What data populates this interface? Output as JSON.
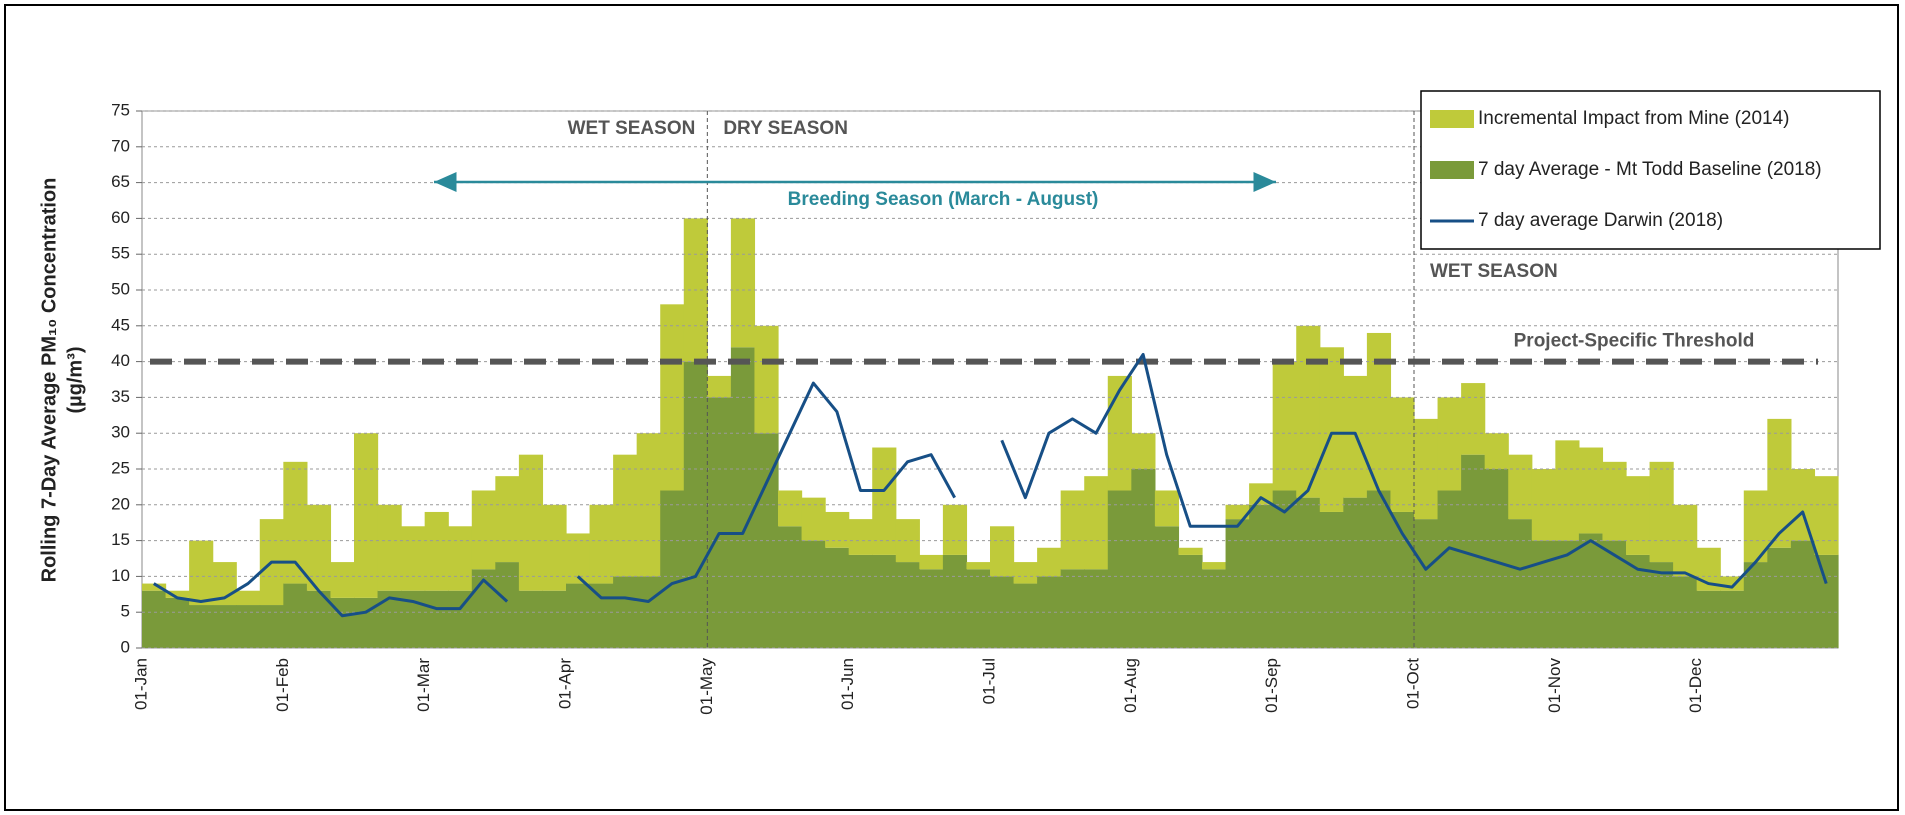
{
  "chart_data": {
    "type": "stacked_bar_line",
    "y_label": [
      "Rolling 7-Day Average PM₁₀ Concentration",
      "(µg/m³)"
    ],
    "categories": [
      "01-Jan",
      null,
      null,
      null,
      null,
      null,
      "01-Feb",
      null,
      null,
      null,
      null,
      null,
      "01-Mar",
      null,
      null,
      null,
      null,
      null,
      "01-Apr",
      null,
      null,
      null,
      null,
      null,
      "01-May",
      null,
      null,
      null,
      null,
      null,
      "01-Jun",
      null,
      null,
      null,
      null,
      null,
      "01-Jul",
      null,
      null,
      null,
      null,
      null,
      "01-Aug",
      null,
      null,
      null,
      null,
      null,
      "01-Sep",
      null,
      null,
      null,
      null,
      null,
      "01-Oct",
      null,
      null,
      null,
      null,
      null,
      "01-Nov",
      null,
      null,
      null,
      null,
      null,
      "01-Dec",
      null,
      null,
      null,
      null,
      null
    ],
    "series": [
      {
        "name": "Incremental Impact from Mine (2014)",
        "color": "#bfca3a",
        "values": [
          1,
          1,
          9,
          6,
          2,
          12,
          17,
          12,
          5,
          23,
          12,
          9,
          11,
          9,
          11,
          12,
          19,
          12,
          7,
          11,
          17,
          20,
          26,
          20,
          3,
          18,
          15,
          5,
          6,
          5,
          5,
          15,
          6,
          2,
          7,
          1,
          7,
          3,
          4,
          11,
          13,
          16,
          5,
          5,
          1,
          1,
          2,
          3,
          18,
          24,
          23,
          17,
          22,
          16,
          14,
          13,
          10,
          5,
          9,
          10,
          14,
          12,
          11,
          11,
          14,
          10,
          6,
          2,
          10,
          18,
          10,
          11
        ]
      },
      {
        "name": "7 day Average - Mt Todd Baseline (2018)",
        "color": "#7a9a3a",
        "values": [
          8,
          7,
          6,
          6,
          6,
          6,
          9,
          8,
          7,
          7,
          8,
          8,
          8,
          8,
          11,
          12,
          8,
          8,
          9,
          9,
          10,
          10,
          22,
          40,
          35,
          42,
          30,
          17,
          15,
          14,
          13,
          13,
          12,
          11,
          13,
          11,
          10,
          9,
          10,
          11,
          11,
          22,
          25,
          17,
          13,
          11,
          18,
          20,
          22,
          21,
          19,
          21,
          22,
          19,
          18,
          22,
          27,
          25,
          18,
          15,
          15,
          16,
          15,
          13,
          12,
          10,
          8,
          8,
          12,
          14,
          15,
          13
        ]
      },
      {
        "name": "7 day average Darwin (2018)",
        "color": "#174f86",
        "values": [
          9,
          7,
          6.5,
          7,
          9,
          12,
          12,
          8,
          4.5,
          5,
          7,
          6.5,
          5.5,
          5.5,
          9.5,
          6.5,
          null,
          null,
          10,
          7,
          7,
          6.5,
          9,
          10,
          16,
          16,
          23,
          30,
          37,
          33,
          22,
          22,
          26,
          27,
          21,
          null,
          29,
          21,
          30,
          32,
          30,
          36,
          41,
          27,
          17,
          17,
          17,
          21,
          19,
          22,
          30,
          30,
          22,
          16,
          11,
          14,
          13,
          12,
          11,
          12,
          13,
          15,
          13,
          11,
          10.5,
          10.5,
          9,
          8.5,
          12,
          16,
          19,
          9
        ]
      }
    ],
    "ylim": [
      0,
      75
    ],
    "yticks": [
      0,
      5,
      10,
      15,
      20,
      25,
      30,
      35,
      40,
      45,
      50,
      55,
      60,
      65,
      70,
      75
    ],
    "grid": true,
    "threshold": {
      "value": 40,
      "label": "Project-Specific Threshold"
    },
    "season_labels": [
      "WET SEASON",
      "DRY SEASON",
      "WET SEASON"
    ],
    "breeding_label": "Breeding Season (March - August)"
  }
}
